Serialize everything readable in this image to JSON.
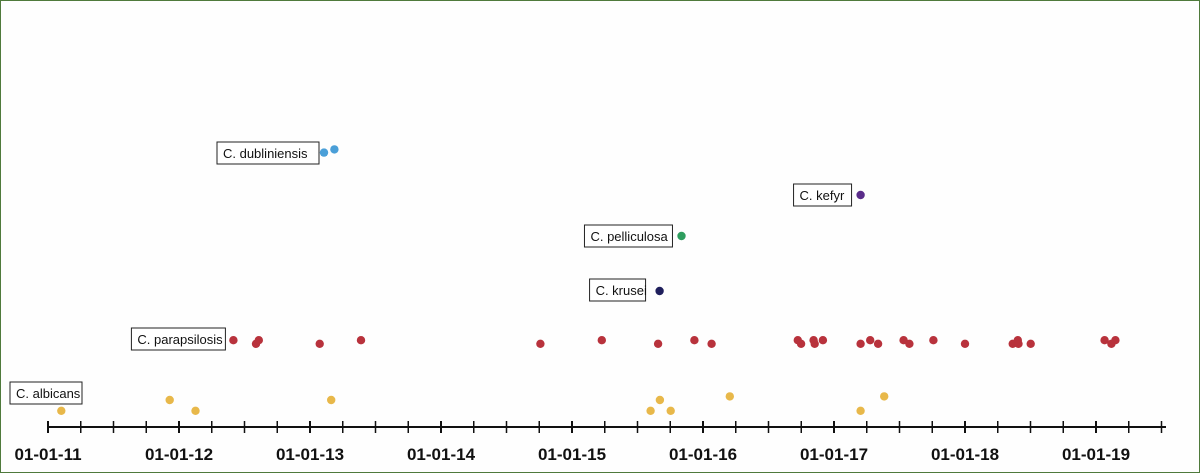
{
  "chart_data": {
    "type": "scatter",
    "title": "",
    "xlabel": "",
    "ylabel": "",
    "x_tick_labels": [
      "01-01-11",
      "01-01-12",
      "01-01-13",
      "01-01-14",
      "01-01-15",
      "01-01-16",
      "01-01-17",
      "01-01-18",
      "01-01-19"
    ],
    "x_range": [
      "2011-01-01",
      "2019-07-01"
    ],
    "grid": false,
    "legend": "labels beside points",
    "series": [
      {
        "name": "C. albicans",
        "color": "#e8b84a",
        "points": [
          {
            "x": "2011-02-07",
            "y": 0.4
          },
          {
            "x": "2011-12-06",
            "y": 1.0
          },
          {
            "x": "2012-02-16",
            "y": 0.4
          },
          {
            "x": "2013-03-01",
            "y": 1.0
          },
          {
            "x": "2015-08-08",
            "y": 0.4
          },
          {
            "x": "2015-09-03",
            "y": 1.0
          },
          {
            "x": "2015-10-03",
            "y": 0.4
          },
          {
            "x": "2016-03-16",
            "y": 1.2
          },
          {
            "x": "2017-03-16",
            "y": 0.4
          },
          {
            "x": "2017-05-21",
            "y": 1.2
          }
        ]
      },
      {
        "name": "C. parapsilosis",
        "color": "#b8323c",
        "points": [
          {
            "x": "2012-06-01",
            "y": 0.6
          },
          {
            "x": "2012-08-03",
            "y": 0.4
          },
          {
            "x": "2012-08-11",
            "y": 0.6
          },
          {
            "x": "2013-01-28",
            "y": 0.4
          },
          {
            "x": "2013-05-23",
            "y": 0.6
          },
          {
            "x": "2014-10-05",
            "y": 0.4
          },
          {
            "x": "2015-03-25",
            "y": 0.6
          },
          {
            "x": "2015-08-29",
            "y": 0.4
          },
          {
            "x": "2015-12-08",
            "y": 0.6
          },
          {
            "x": "2016-01-25",
            "y": 0.4
          },
          {
            "x": "2016-09-22",
            "y": 0.6
          },
          {
            "x": "2016-10-01",
            "y": 0.4
          },
          {
            "x": "2016-11-05",
            "y": 0.6
          },
          {
            "x": "2016-11-08",
            "y": 0.4
          },
          {
            "x": "2016-12-01",
            "y": 0.6
          },
          {
            "x": "2017-03-16",
            "y": 0.4
          },
          {
            "x": "2017-04-12",
            "y": 0.6
          },
          {
            "x": "2017-05-04",
            "y": 0.4
          },
          {
            "x": "2017-07-14",
            "y": 0.6
          },
          {
            "x": "2017-07-30",
            "y": 0.4
          },
          {
            "x": "2017-10-05",
            "y": 0.6
          },
          {
            "x": "2018-01-01",
            "y": 0.4
          },
          {
            "x": "2018-05-14",
            "y": 0.4
          },
          {
            "x": "2018-05-28",
            "y": 0.6
          },
          {
            "x": "2018-05-30",
            "y": 0.4
          },
          {
            "x": "2018-07-03",
            "y": 0.4
          },
          {
            "x": "2019-01-25",
            "y": 0.6
          },
          {
            "x": "2019-02-13",
            "y": 0.4
          },
          {
            "x": "2019-02-24",
            "y": 0.6
          }
        ]
      },
      {
        "name": "C. krusei",
        "color": "#1f1f5c",
        "points": [
          {
            "x": "2015-09-02",
            "y": 0.5
          }
        ]
      },
      {
        "name": "C. pelliculosa",
        "color": "#2e9d5e",
        "points": [
          {
            "x": "2015-11-02",
            "y": 0.5
          }
        ]
      },
      {
        "name": "C. kefyr",
        "color": "#5a2c8a",
        "points": [
          {
            "x": "2017-03-16",
            "y": 0.5
          }
        ]
      },
      {
        "name": "C. dubliniensis",
        "color": "#4a9fd8",
        "points": [
          {
            "x": "2013-02-09",
            "y": 0.4
          },
          {
            "x": "2013-03-10",
            "y": 0.6
          }
        ]
      }
    ]
  }
}
